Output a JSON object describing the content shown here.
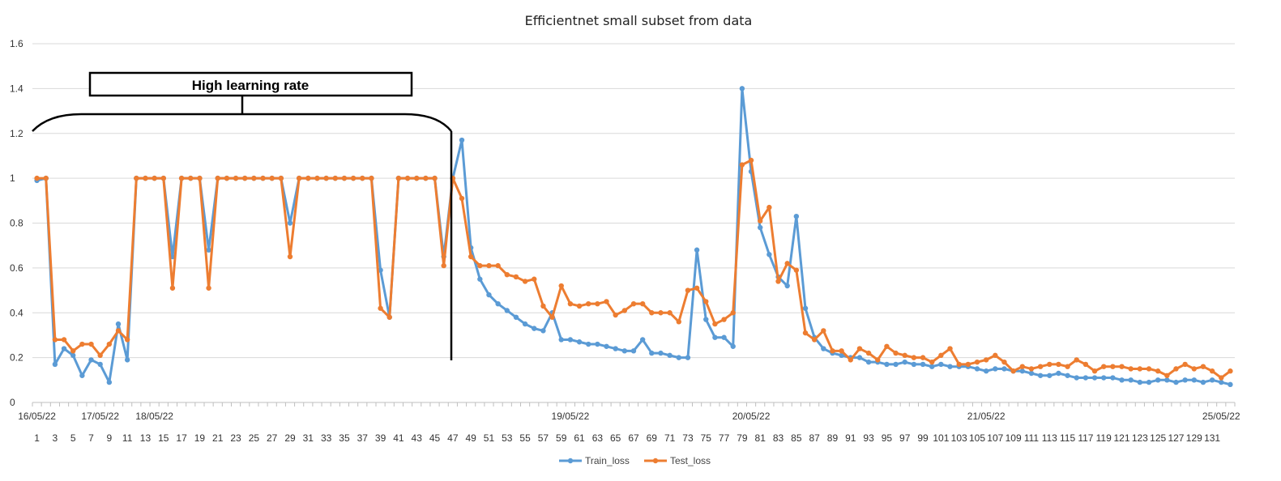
{
  "chart_data": {
    "type": "line",
    "title": "Efficientnet small subset from data",
    "xlabel": "",
    "ylabel": "",
    "ylim": [
      0,
      1.6
    ],
    "yticks": [
      "0",
      "0.2",
      "0.4",
      "0.6",
      "0.8",
      "1",
      "1.2",
      "1.4",
      "1.6"
    ],
    "grid": true,
    "legend": "bottom",
    "x": [
      1,
      2,
      3,
      4,
      5,
      6,
      7,
      8,
      9,
      10,
      11,
      12,
      13,
      14,
      15,
      16,
      17,
      18,
      19,
      20,
      21,
      22,
      23,
      24,
      25,
      26,
      27,
      28,
      29,
      30,
      31,
      32,
      33,
      34,
      35,
      36,
      37,
      38,
      39,
      40,
      41,
      42,
      43,
      44,
      45,
      46,
      47,
      48,
      49,
      50,
      51,
      52,
      53,
      54,
      55,
      56,
      57,
      58,
      59,
      60,
      61,
      62,
      63,
      64,
      65,
      66,
      67,
      68,
      69,
      70,
      71,
      72,
      73,
      74,
      75,
      76,
      77,
      78,
      79,
      80,
      81,
      82,
      83,
      84,
      85,
      86,
      87,
      88,
      89,
      90,
      91,
      92,
      93,
      94,
      95,
      96,
      97,
      98,
      99,
      100,
      101,
      102,
      103,
      104,
      105,
      106,
      107,
      108,
      109,
      110,
      111,
      112,
      113,
      114,
      115,
      116,
      117,
      118,
      119,
      120,
      121,
      122,
      123,
      124,
      125,
      126,
      127,
      128,
      129,
      130,
      131,
      132,
      133
    ],
    "category_labels": [
      "1",
      "3",
      "5",
      "7",
      "9",
      "11",
      "13",
      "15",
      "17",
      "19",
      "21",
      "23",
      "25",
      "27",
      "29",
      "31",
      "33",
      "35",
      "37",
      "39",
      "41",
      "43",
      "45",
      "47",
      "49",
      "51",
      "53",
      "55",
      "57",
      "59",
      "61",
      "63",
      "65",
      "67",
      "69",
      "71",
      "73",
      "75",
      "77",
      "79",
      "81",
      "83",
      "85",
      "87",
      "89",
      "91",
      "93",
      "95",
      "97",
      "99",
      "101",
      "103",
      "105",
      "107",
      "109",
      "111",
      "113",
      "115",
      "117",
      "119",
      "121",
      "123",
      "125",
      "127",
      "129",
      "131"
    ],
    "date_labels": [
      {
        "x": 1,
        "label": "16/05/22"
      },
      {
        "x": 8,
        "label": "17/05/22"
      },
      {
        "x": 14,
        "label": "18/05/22"
      },
      {
        "x": 60,
        "label": "19/05/22"
      },
      {
        "x": 80,
        "label": "20/05/22"
      },
      {
        "x": 106,
        "label": "21/05/22"
      },
      {
        "x": 132,
        "label": "25/05/22"
      }
    ],
    "series": [
      {
        "name": "Train_loss",
        "color": "#5B9BD5",
        "values": [
          0.99,
          1.0,
          0.17,
          0.24,
          0.21,
          0.12,
          0.19,
          0.17,
          0.09,
          0.35,
          0.19,
          1.0,
          1.0,
          1.0,
          1.0,
          0.65,
          1.0,
          1.0,
          1.0,
          0.68,
          1.0,
          1.0,
          1.0,
          1.0,
          1.0,
          1.0,
          1.0,
          1.0,
          0.8,
          1.0,
          1.0,
          1.0,
          1.0,
          1.0,
          1.0,
          1.0,
          1.0,
          1.0,
          0.59,
          0.38,
          1.0,
          1.0,
          1.0,
          1.0,
          1.0,
          0.65,
          1.0,
          1.17,
          0.69,
          0.55,
          0.48,
          0.44,
          0.41,
          0.38,
          0.35,
          0.33,
          0.32,
          0.4,
          0.28,
          0.28,
          0.27,
          0.26,
          0.26,
          0.25,
          0.24,
          0.23,
          0.23,
          0.28,
          0.22,
          0.22,
          0.21,
          0.2,
          0.2,
          0.68,
          0.37,
          0.29,
          0.29,
          0.25,
          1.4,
          1.03,
          0.78,
          0.66,
          0.56,
          0.52,
          0.83,
          0.42,
          0.29,
          0.24,
          0.22,
          0.21,
          0.2,
          0.2,
          0.18,
          0.18,
          0.17,
          0.17,
          0.18,
          0.17,
          0.17,
          0.16,
          0.17,
          0.16,
          0.16,
          0.16,
          0.15,
          0.14,
          0.15,
          0.15,
          0.14,
          0.14,
          0.13,
          0.12,
          0.12,
          0.13,
          0.12,
          0.11,
          0.11,
          0.11,
          0.11,
          0.11,
          0.1,
          0.1,
          0.09,
          0.09,
          0.1,
          0.1,
          0.09,
          0.1,
          0.1,
          0.09,
          0.1,
          0.09,
          0.08
        ]
      },
      {
        "name": "Test_loss",
        "color": "#ED7D31",
        "values": [
          1.0,
          1.0,
          0.28,
          0.28,
          0.23,
          0.26,
          0.26,
          0.21,
          0.26,
          0.32,
          0.28,
          1.0,
          1.0,
          1.0,
          1.0,
          0.51,
          1.0,
          1.0,
          1.0,
          0.51,
          1.0,
          1.0,
          1.0,
          1.0,
          1.0,
          1.0,
          1.0,
          1.0,
          0.65,
          1.0,
          1.0,
          1.0,
          1.0,
          1.0,
          1.0,
          1.0,
          1.0,
          1.0,
          0.42,
          0.38,
          1.0,
          1.0,
          1.0,
          1.0,
          1.0,
          0.61,
          1.0,
          0.91,
          0.65,
          0.61,
          0.61,
          0.61,
          0.57,
          0.56,
          0.54,
          0.55,
          0.43,
          0.38,
          0.52,
          0.44,
          0.43,
          0.44,
          0.44,
          0.45,
          0.39,
          0.41,
          0.44,
          0.44,
          0.4,
          0.4,
          0.4,
          0.36,
          0.5,
          0.51,
          0.45,
          0.35,
          0.37,
          0.4,
          1.06,
          1.08,
          0.81,
          0.87,
          0.54,
          0.62,
          0.59,
          0.31,
          0.28,
          0.32,
          0.23,
          0.23,
          0.19,
          0.24,
          0.22,
          0.19,
          0.25,
          0.22,
          0.21,
          0.2,
          0.2,
          0.18,
          0.21,
          0.24,
          0.17,
          0.17,
          0.18,
          0.19,
          0.21,
          0.18,
          0.14,
          0.16,
          0.15,
          0.16,
          0.17,
          0.17,
          0.16,
          0.19,
          0.17,
          0.14,
          0.16,
          0.16,
          0.16,
          0.15,
          0.15,
          0.15,
          0.14,
          0.12,
          0.15,
          0.17,
          0.15,
          0.16,
          0.14,
          0.11,
          0.14
        ]
      }
    ],
    "annotations": [
      {
        "text": "High learning rate",
        "x_start": 1,
        "x_end": 46
      }
    ]
  }
}
